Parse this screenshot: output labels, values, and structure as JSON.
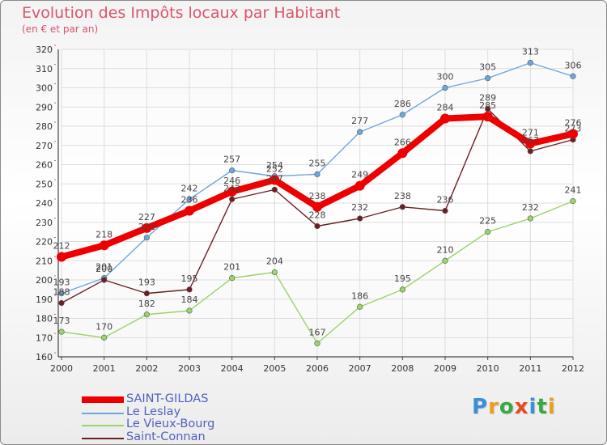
{
  "header": {
    "title": "Evolution des Impôts locaux par Habitant",
    "subtitle": "(en € et par an)"
  },
  "brand": {
    "letters": [
      "P",
      "r",
      "o",
      "x",
      "i",
      "t",
      "i"
    ],
    "colors": [
      "#3a8fd8",
      "#e8a020",
      "#3aa845",
      "#e84a20",
      "#3a8fd8",
      "#3aa845",
      "#e8a020"
    ]
  },
  "colors": {
    "SAINT-GILDAS": "#ee0000",
    "Le Leslay": "#6ea7dd",
    "Le Vieux-Bourg": "#9ad46a",
    "Saint-Connan": "#6b1f22",
    "label_text": "#444444",
    "grid": "#dddddd",
    "axis": "#444444"
  },
  "chart_data": {
    "type": "line",
    "title": "Evolution des Impôts locaux par Habitant",
    "subtitle": "(en € et par an)",
    "xlabel": "",
    "ylabel": "",
    "ylim": [
      160,
      320
    ],
    "ytick_step": 10,
    "grid": true,
    "legend_position": "bottom-left",
    "x": [
      "2000",
      "2001",
      "2002",
      "2003",
      "2004",
      "2005",
      "2006",
      "2007",
      "2008",
      "2009",
      "2010",
      "2011",
      "2012"
    ],
    "series": [
      {
        "name": "SAINT-GILDAS",
        "values": [
          212,
          218,
          227,
          236,
          246,
          252,
          238,
          249,
          266,
          284,
          285,
          271,
          276
        ]
      },
      {
        "name": "Le Leslay",
        "values": [
          193,
          201,
          222,
          242,
          257,
          254,
          255,
          277,
          286,
          300,
          305,
          313,
          306
        ]
      },
      {
        "name": "Le Vieux-Bourg",
        "values": [
          173,
          170,
          182,
          184,
          201,
          204,
          167,
          186,
          195,
          210,
          225,
          232,
          241
        ]
      },
      {
        "name": "Saint-Connan",
        "values": [
          188,
          200,
          193,
          195,
          242,
          247,
          228,
          232,
          238,
          236,
          289,
          267,
          273
        ]
      }
    ]
  }
}
